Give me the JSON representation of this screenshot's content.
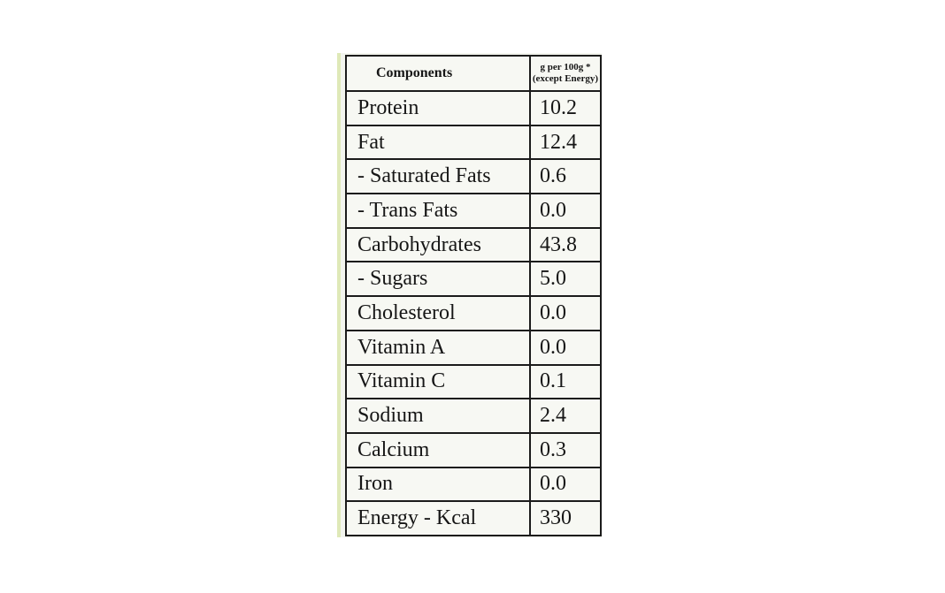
{
  "table": {
    "header": {
      "components": "Components",
      "unit_line1": "g per 100g *",
      "unit_line2": "(except Energy)"
    },
    "rows": [
      {
        "name": "Protein",
        "value": "10.2"
      },
      {
        "name": "Fat",
        "value": "12.4"
      },
      {
        "name": "- Saturated Fats",
        "value": "0.6"
      },
      {
        "name": "- Trans Fats",
        "value": "0.0"
      },
      {
        "name": "Carbohydrates",
        "value": "43.8"
      },
      {
        "name": "- Sugars",
        "value": "5.0"
      },
      {
        "name": "Cholesterol",
        "value": "0.0"
      },
      {
        "name": "Vitamin A",
        "value": "0.0"
      },
      {
        "name": "Vitamin C",
        "value": "0.1"
      },
      {
        "name": "Sodium",
        "value": "2.4"
      },
      {
        "name": "Calcium",
        "value": "0.3"
      },
      {
        "name": "Iron",
        "value": "0.0"
      },
      {
        "name": "Energy - Kcal",
        "value": "330"
      }
    ]
  },
  "colors": {
    "ink": "#161616",
    "paper": "#f7f8f3",
    "edge_tint": "#dfe9b8"
  }
}
